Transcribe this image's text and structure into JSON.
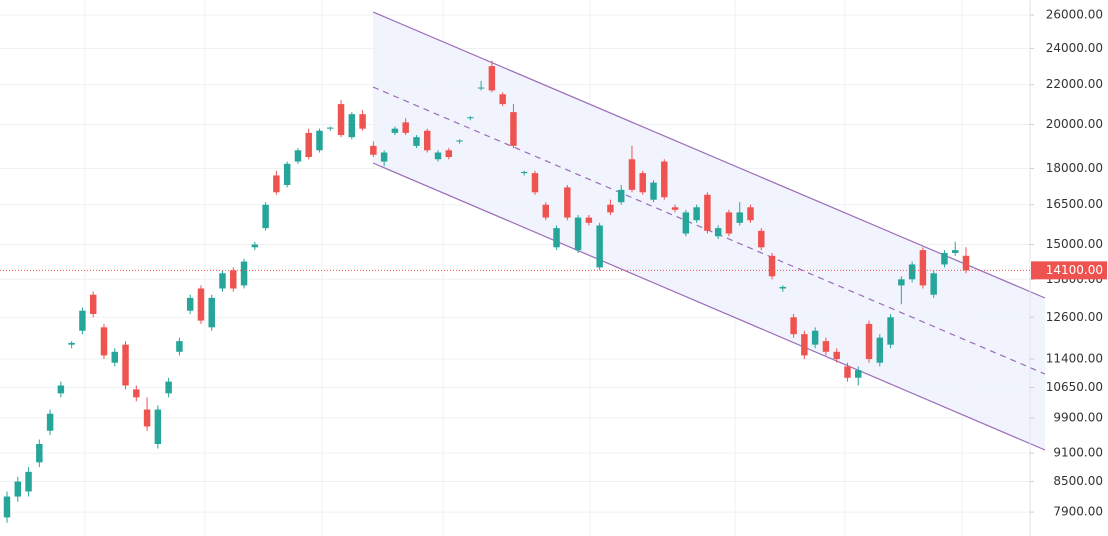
{
  "chart_data": {
    "type": "candlestick",
    "log_scale": true,
    "ylim": [
      7460,
      26950
    ],
    "yticks": [
      {
        "value": 26000,
        "label": "26000.00"
      },
      {
        "value": 24000,
        "label": "24000.00"
      },
      {
        "value": 22000,
        "label": "22000.00"
      },
      {
        "value": 20000,
        "label": "20000.00"
      },
      {
        "value": 18000,
        "label": "18000.00"
      },
      {
        "value": 16500,
        "label": "16500.00"
      },
      {
        "value": 15000,
        "label": "15000.00"
      },
      {
        "value": 13800,
        "label": "13800.00"
      },
      {
        "value": 12600,
        "label": "12600.00"
      },
      {
        "value": 11400,
        "label": "11400.00"
      },
      {
        "value": 10650,
        "label": "10650.00"
      },
      {
        "value": 9900,
        "label": "9900.00"
      },
      {
        "value": 9100,
        "label": "9100.00"
      },
      {
        "value": 8500,
        "label": "8500.00"
      },
      {
        "value": 7900,
        "label": "7900.00"
      }
    ],
    "grid": true,
    "up_color": "#26a69a",
    "down_color": "#ef5350",
    "last_price": {
      "value": 14100,
      "label": "14100.00"
    },
    "open": [
      7800,
      8200,
      8300,
      8900,
      9600,
      10500,
      11800,
      12200,
      13300,
      12300,
      11300,
      11800,
      10600,
      10100,
      9300,
      10500,
      11600,
      12800,
      13500,
      12300,
      13500,
      14100,
      13600,
      14900,
      15600,
      17700,
      17300,
      18300,
      19600,
      18800,
      19800,
      21000,
      19400,
      20500,
      19000,
      18300,
      19600,
      20100,
      19000,
      19700,
      18400,
      18800,
      19200,
      20300,
      21800,
      23000,
      21500,
      20600,
      17800,
      17800,
      16500,
      14900,
      17200,
      14800,
      16000,
      14200,
      16500,
      16600,
      18400,
      17800,
      16700,
      18300,
      16400,
      15400,
      15900,
      16900,
      15300,
      16200,
      15800,
      16400,
      15500,
      14600,
      13500,
      12600,
      12100,
      11800,
      11900,
      11600,
      11200,
      10900,
      12400,
      11300,
      11800,
      13600,
      13800,
      14800,
      13300,
      14300,
      14700,
      14600
    ],
    "close": [
      8200,
      8500,
      8700,
      9300,
      10000,
      10700,
      11850,
      12800,
      12700,
      11500,
      11600,
      10700,
      10400,
      9700,
      10100,
      10800,
      11900,
      13200,
      12500,
      13200,
      14000,
      13500,
      14400,
      15000,
      16500,
      17000,
      18200,
      18800,
      18500,
      19700,
      19850,
      19500,
      20500,
      19800,
      18600,
      18700,
      19800,
      19600,
      19400,
      18800,
      18700,
      18500,
      19250,
      20350,
      21850,
      21700,
      21000,
      19000,
      17850,
      17000,
      16000,
      15600,
      16000,
      16000,
      15800,
      15700,
      16200,
      17100,
      17100,
      17000,
      17400,
      16800,
      16300,
      16200,
      16400,
      15500,
      15600,
      15400,
      16200,
      15900,
      14900,
      13900,
      13550,
      12100,
      11500,
      12200,
      11600,
      11400,
      10900,
      11100,
      11400,
      12000,
      12600,
      13800,
      14300,
      13600,
      14000,
      14700,
      14800,
      14100
    ],
    "high": [
      8300,
      8600,
      8800,
      9400,
      10100,
      10800,
      11900,
      12900,
      13400,
      12400,
      11700,
      11900,
      10700,
      10400,
      10200,
      10900,
      12000,
      13300,
      13600,
      13300,
      14100,
      14200,
      14500,
      15100,
      16600,
      17900,
      18300,
      18900,
      19800,
      19800,
      19900,
      21200,
      20600,
      20700,
      19200,
      18800,
      19900,
      20300,
      19500,
      19800,
      18800,
      18900,
      19300,
      20400,
      22200,
      23300,
      21600,
      21000,
      17900,
      17900,
      16600,
      15700,
      17300,
      16100,
      16100,
      15800,
      16700,
      17300,
      19000,
      17900,
      17500,
      18400,
      16500,
      16300,
      16500,
      17000,
      15700,
      16300,
      16600,
      16500,
      15600,
      14700,
      13600,
      12700,
      12200,
      12300,
      12000,
      11700,
      11300,
      11200,
      12500,
      12100,
      12700,
      13900,
      14400,
      14900,
      14100,
      14800,
      15100,
      14900
    ],
    "low": [
      7700,
      8100,
      8200,
      8800,
      9500,
      10400,
      11700,
      12100,
      12600,
      11400,
      11200,
      10600,
      10300,
      9600,
      9200,
      10400,
      11500,
      12700,
      12400,
      12200,
      13400,
      13400,
      13500,
      14800,
      15500,
      16900,
      17200,
      18200,
      18400,
      18700,
      19700,
      19400,
      19300,
      19700,
      18500,
      18100,
      19500,
      19500,
      18900,
      18700,
      18300,
      18400,
      19100,
      20200,
      21700,
      21600,
      20900,
      18900,
      17700,
      16900,
      15900,
      14800,
      15900,
      14700,
      15700,
      14100,
      16100,
      16500,
      17000,
      16900,
      16600,
      16700,
      16200,
      15300,
      15800,
      15400,
      15200,
      15300,
      15700,
      15800,
      14800,
      13800,
      13400,
      12000,
      11400,
      11700,
      11500,
      11300,
      10800,
      10700,
      11300,
      11200,
      11700,
      13000,
      13700,
      13500,
      13200,
      14200,
      14600,
      14000
    ]
  }
}
